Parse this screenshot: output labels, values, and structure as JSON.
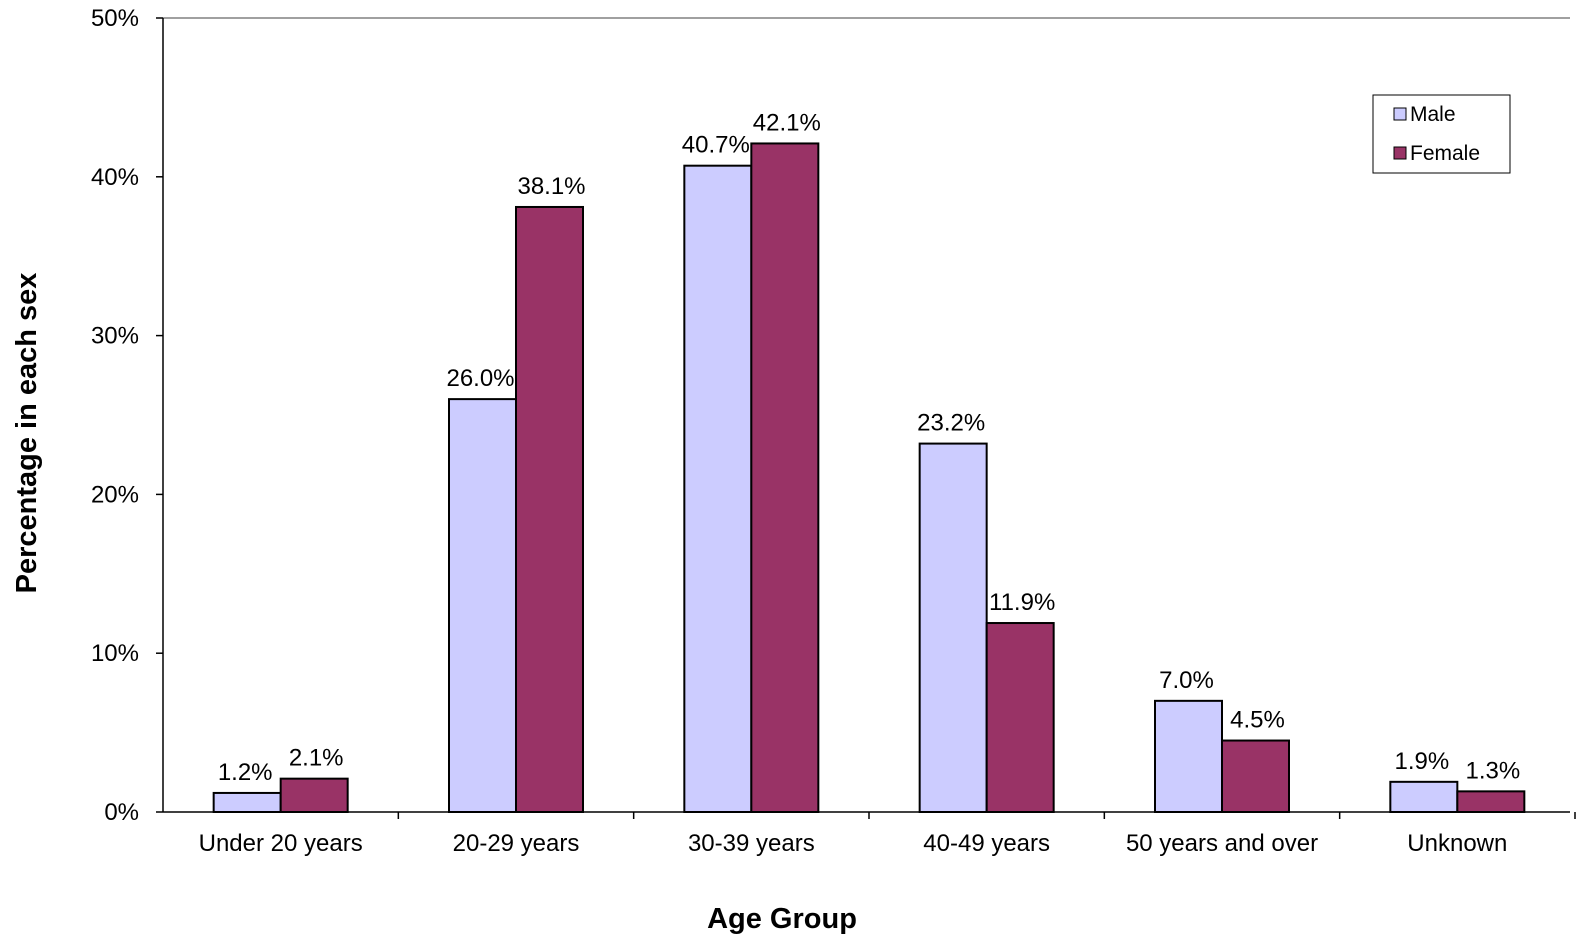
{
  "chart_data": {
    "type": "bar",
    "title": "",
    "xlabel": "Age Group",
    "ylabel": "Percentage in each sex",
    "categories": [
      "Under 20 years",
      "20-29 years",
      "30-39 years",
      "40-49 years",
      "50 years and over",
      "Unknown"
    ],
    "series": [
      {
        "name": "Male",
        "color": "#CCCCFF",
        "values": [
          1.2,
          26.0,
          40.7,
          23.2,
          7.0,
          1.9
        ],
        "labels": [
          "1.2%",
          "26.0%",
          "40.7%",
          "23.2%",
          "7.0%",
          "1.9%"
        ]
      },
      {
        "name": "Female",
        "color": "#993366",
        "values": [
          2.1,
          38.1,
          42.1,
          11.9,
          4.5,
          1.3
        ],
        "labels": [
          "2.1%",
          "38.1%",
          "42.1%",
          "11.9%",
          "4.5%",
          "1.3%"
        ]
      }
    ],
    "ylim": [
      0,
      50
    ],
    "yticks": [
      0,
      10,
      20,
      30,
      40,
      50
    ],
    "ytick_labels": [
      "0%",
      "10%",
      "20%",
      "30%",
      "40%",
      "50%"
    ],
    "grid": false,
    "legend_position": "top-right"
  }
}
